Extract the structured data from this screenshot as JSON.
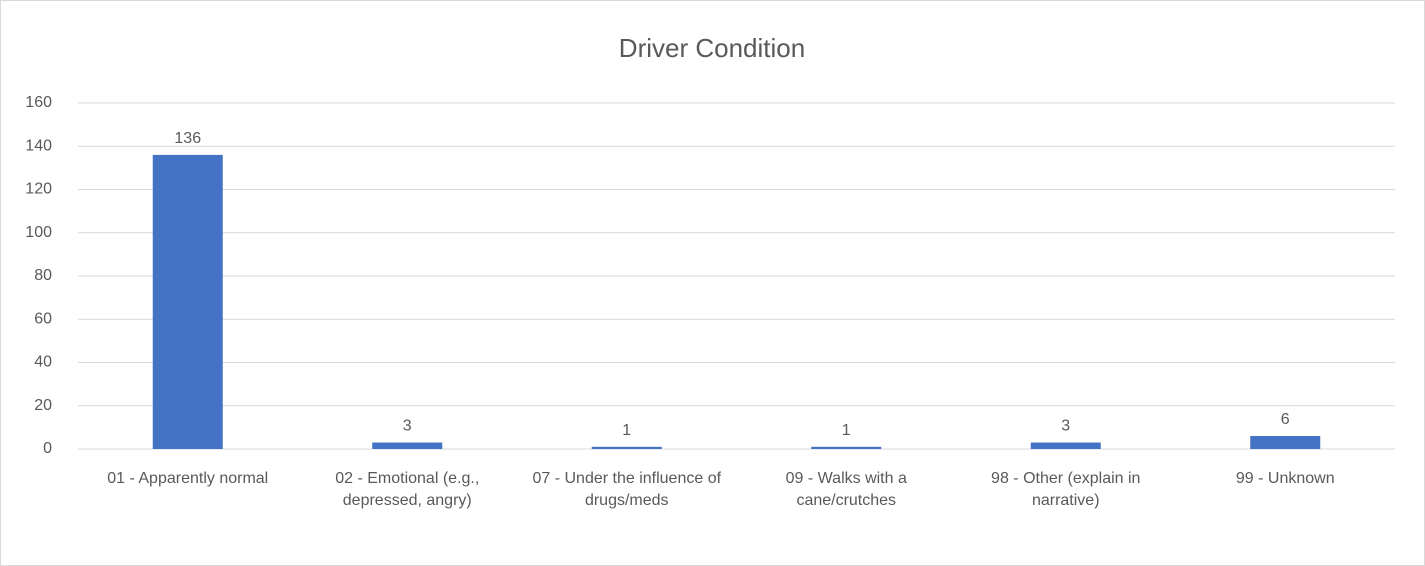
{
  "chart_data": {
    "type": "bar",
    "title": "Driver Condition",
    "categories": [
      "01 - Apparently normal",
      "02 - Emotional (e.g., depressed, angry)",
      "07 - Under the influence of drugs/meds",
      "09 - Walks with a cane/crutches",
      "98 - Other (explain in narrative)",
      "99 - Unknown"
    ],
    "values": [
      136,
      3,
      1,
      1,
      3,
      6
    ],
    "color": "#4472c4",
    "ylim": [
      0,
      160
    ],
    "yticks": [
      0,
      20,
      40,
      60,
      80,
      100,
      120,
      140,
      160
    ],
    "grid": true
  }
}
